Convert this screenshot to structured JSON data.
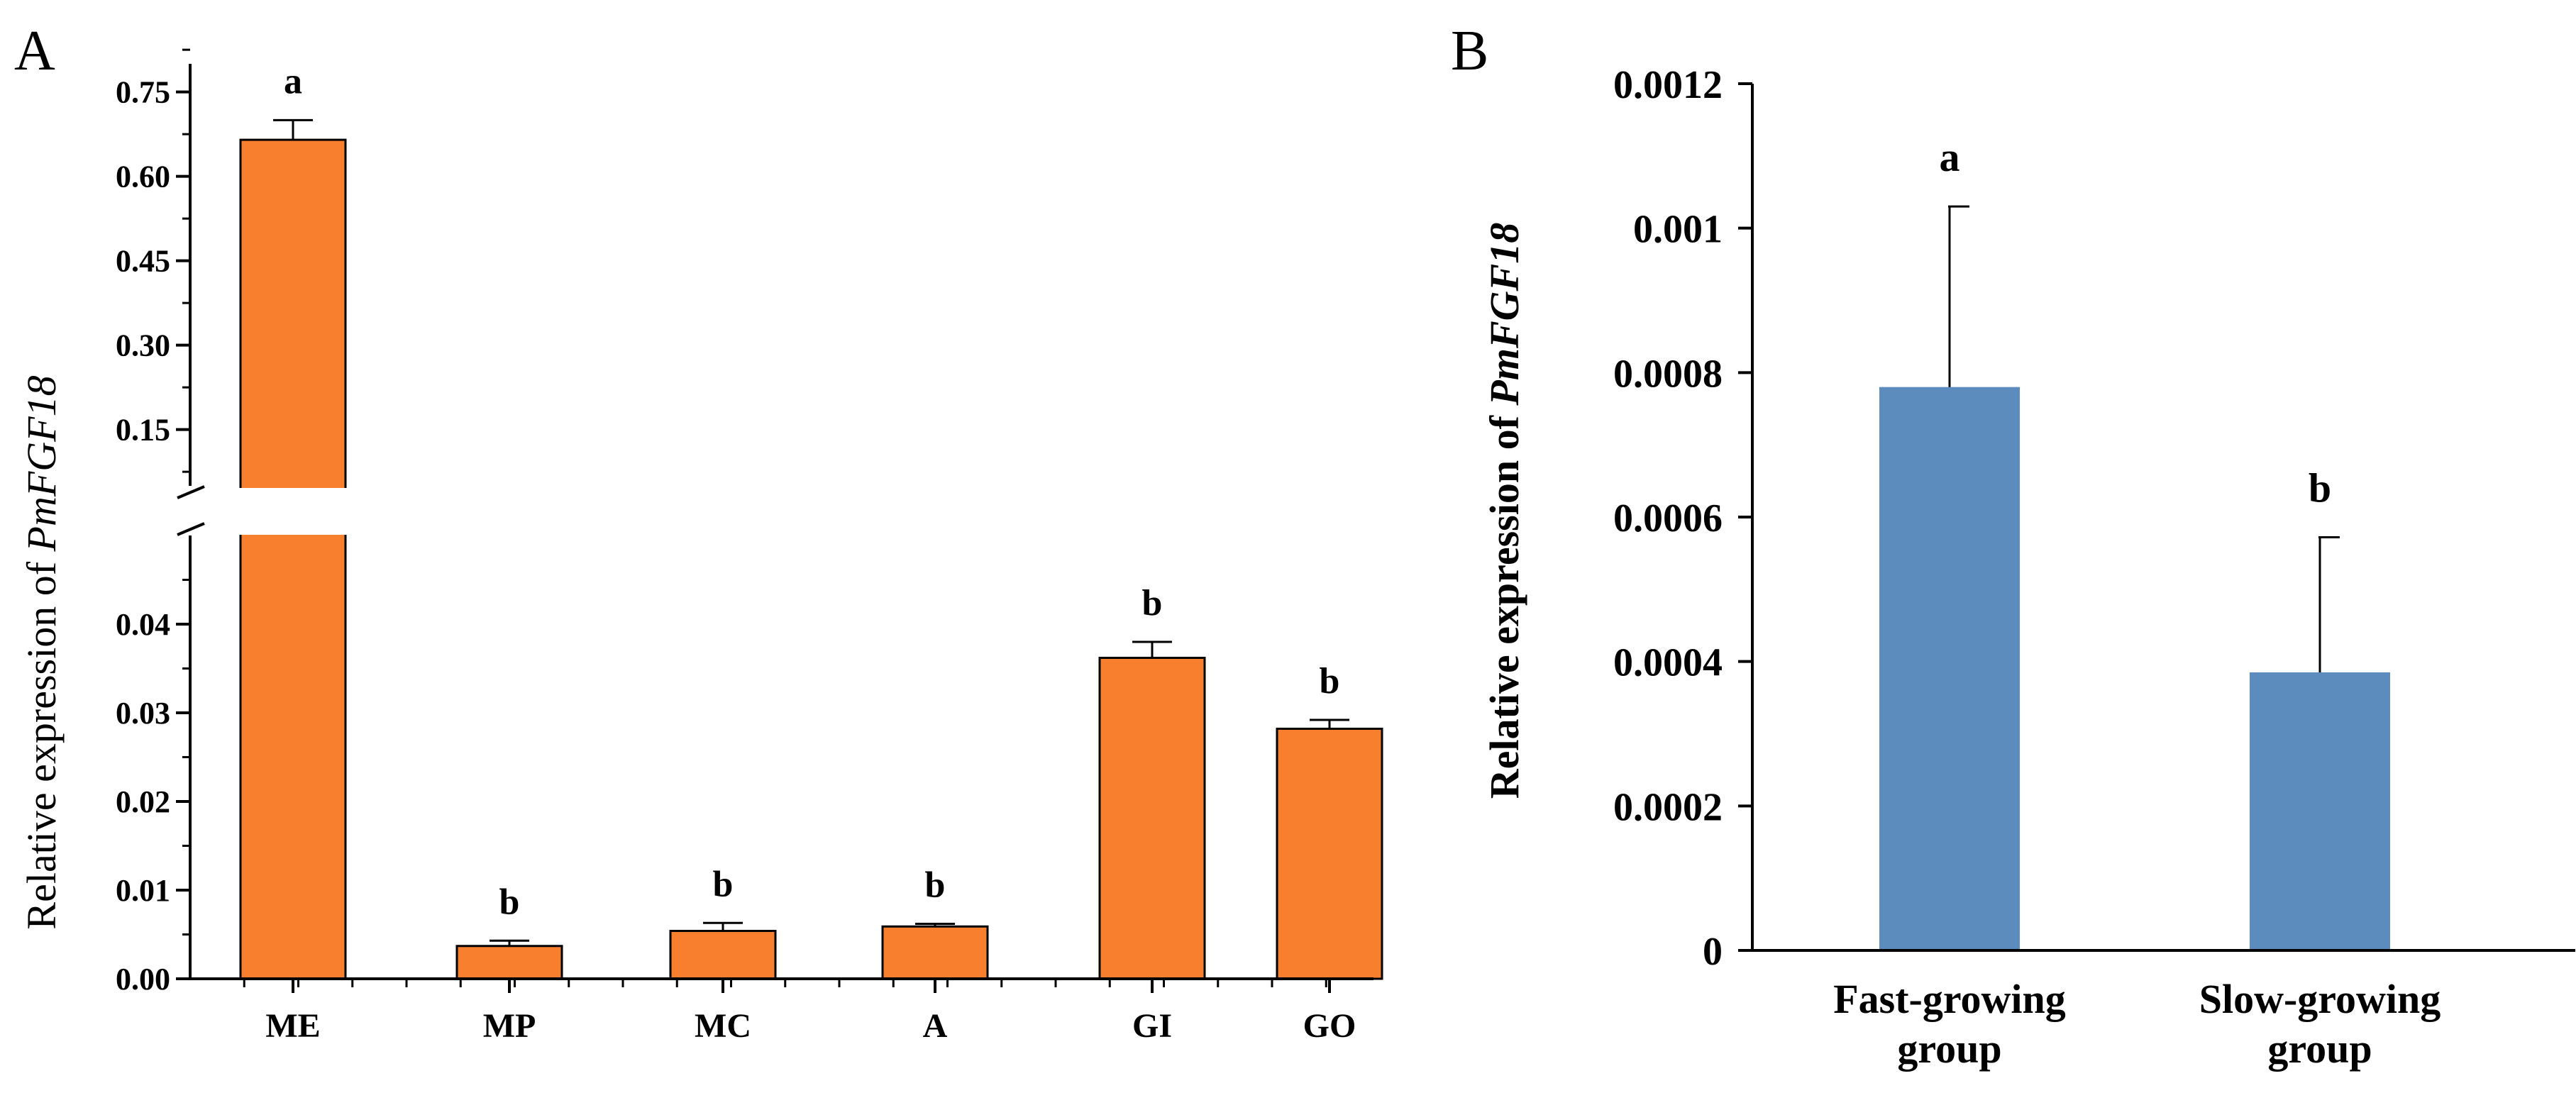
{
  "chart_data": [
    {
      "panel": "A",
      "type": "bar",
      "ylabel_prefix": "Relative expression of ",
      "ylabel_gene": "PmFGF18",
      "categories": [
        "ME",
        "MP",
        "MC",
        "A",
        "GI",
        "GO"
      ],
      "values": [
        0.665,
        0.0037,
        0.0054,
        0.0059,
        0.0362,
        0.0282
      ],
      "errors": [
        0.035,
        0.0006,
        0.0009,
        0.0003,
        0.0018,
        0.001
      ],
      "significance": [
        "a",
        "b",
        "b",
        "b",
        "b",
        "b"
      ],
      "axis_break": true,
      "lower_ylim": [
        0,
        0.05
      ],
      "lower_ticks": [
        "0.00",
        "0.01",
        "0.02",
        "0.03",
        "0.04"
      ],
      "upper_ylim": [
        0.05,
        0.8
      ],
      "upper_ticks": [
        "0.15",
        "0.30",
        "0.45",
        "0.60",
        "0.75"
      ],
      "bar_color": "#F77F2E"
    },
    {
      "panel": "B",
      "type": "bar",
      "ylabel_prefix": "Relative expression of ",
      "ylabel_gene": "PmFGF18",
      "categories": [
        [
          "Fast-growing",
          "group"
        ],
        [
          "Slow-growing",
          "group"
        ]
      ],
      "values": [
        0.00078,
        0.000385
      ],
      "errors": [
        0.00025,
        0.000187
      ],
      "significance": [
        "a",
        "b"
      ],
      "ylim": [
        0,
        0.0012
      ],
      "ticks": [
        "0",
        "0.0002",
        "0.0004",
        "0.0006",
        "0.0008",
        "0.001",
        "0.0012"
      ],
      "bar_color": "#5B8CBD"
    }
  ]
}
